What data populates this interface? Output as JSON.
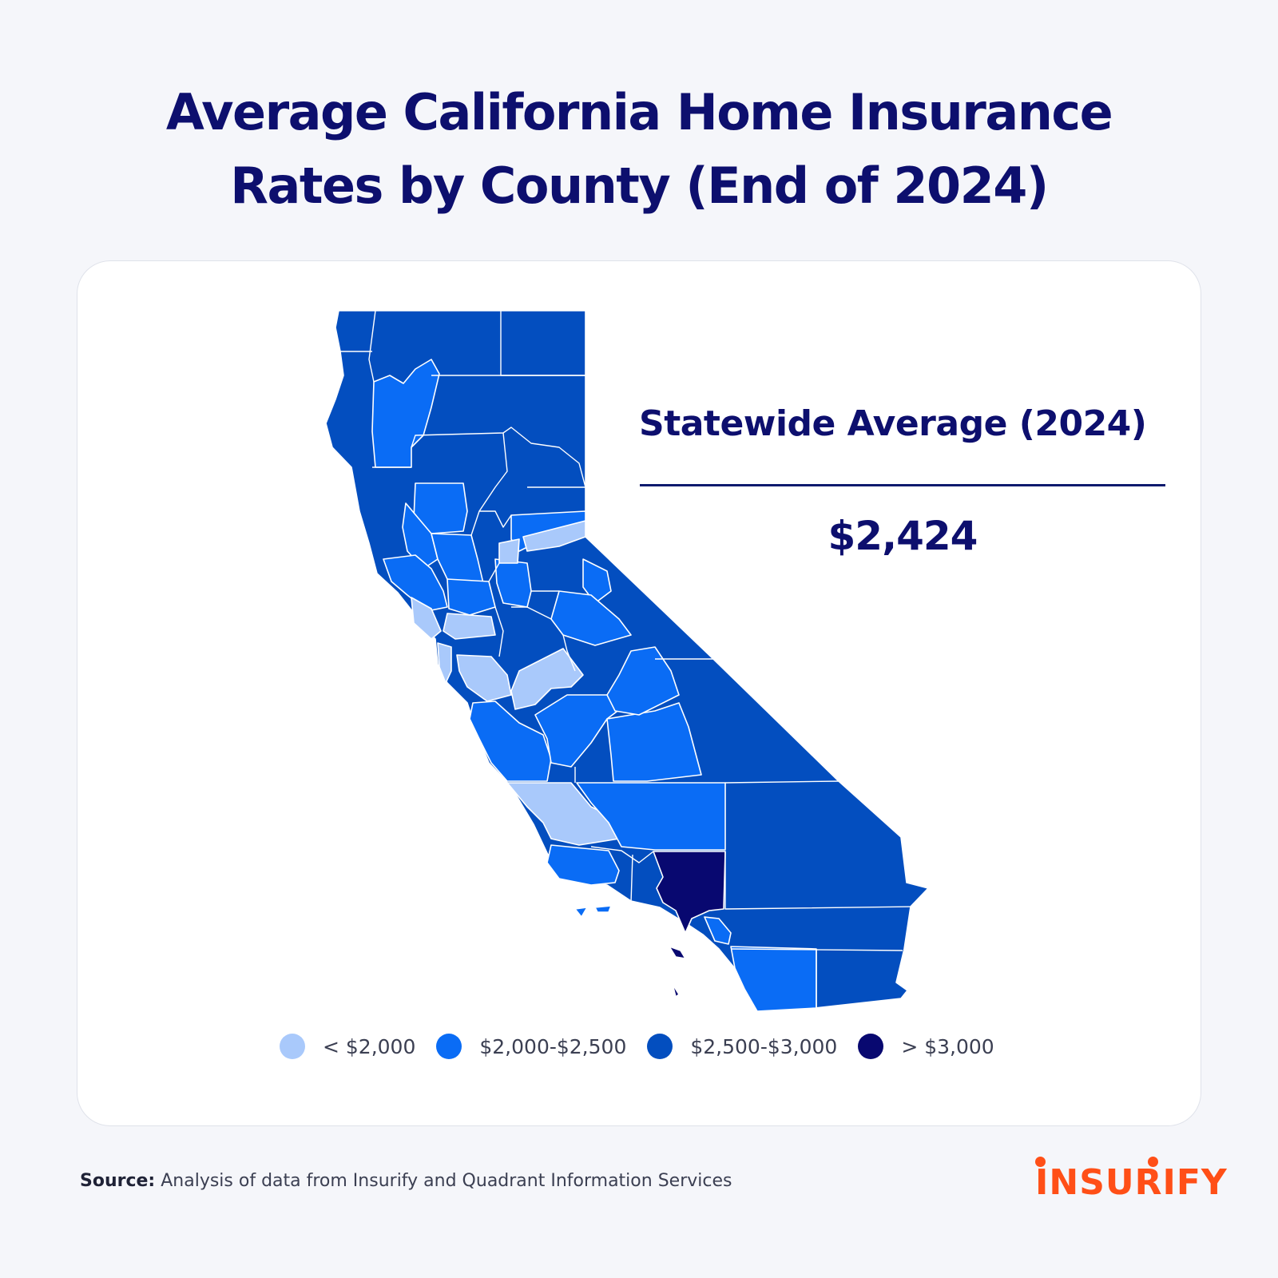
{
  "title": {
    "line1": "Average California Home Insurance",
    "line2": "Rates by County (End of 2024)"
  },
  "statewide": {
    "label": "Statewide Average (2024)",
    "value": "$2,424"
  },
  "colors": {
    "under_2000": "#a9c9fb",
    "r2000_2500": "#0a6cf5",
    "r2500_3000": "#034ebf",
    "over_3000": "#080870",
    "border": "#ffffff",
    "title": "#0d0f6e",
    "brand": "#ff4f17"
  },
  "legend": [
    {
      "label": "< $2,000",
      "color": "#a9c9fb"
    },
    {
      "label": "$2,000-$2,500",
      "color": "#0a6cf5"
    },
    {
      "label": "$2,500-$3,000",
      "color": "#034ebf"
    },
    {
      "label": "> $3,000",
      "color": "#080870"
    }
  ],
  "source": {
    "label": "Source:",
    "text": "Analysis of data from Insurify and Quadrant Information Services"
  },
  "logo": {
    "text": "INSURIFY"
  }
}
